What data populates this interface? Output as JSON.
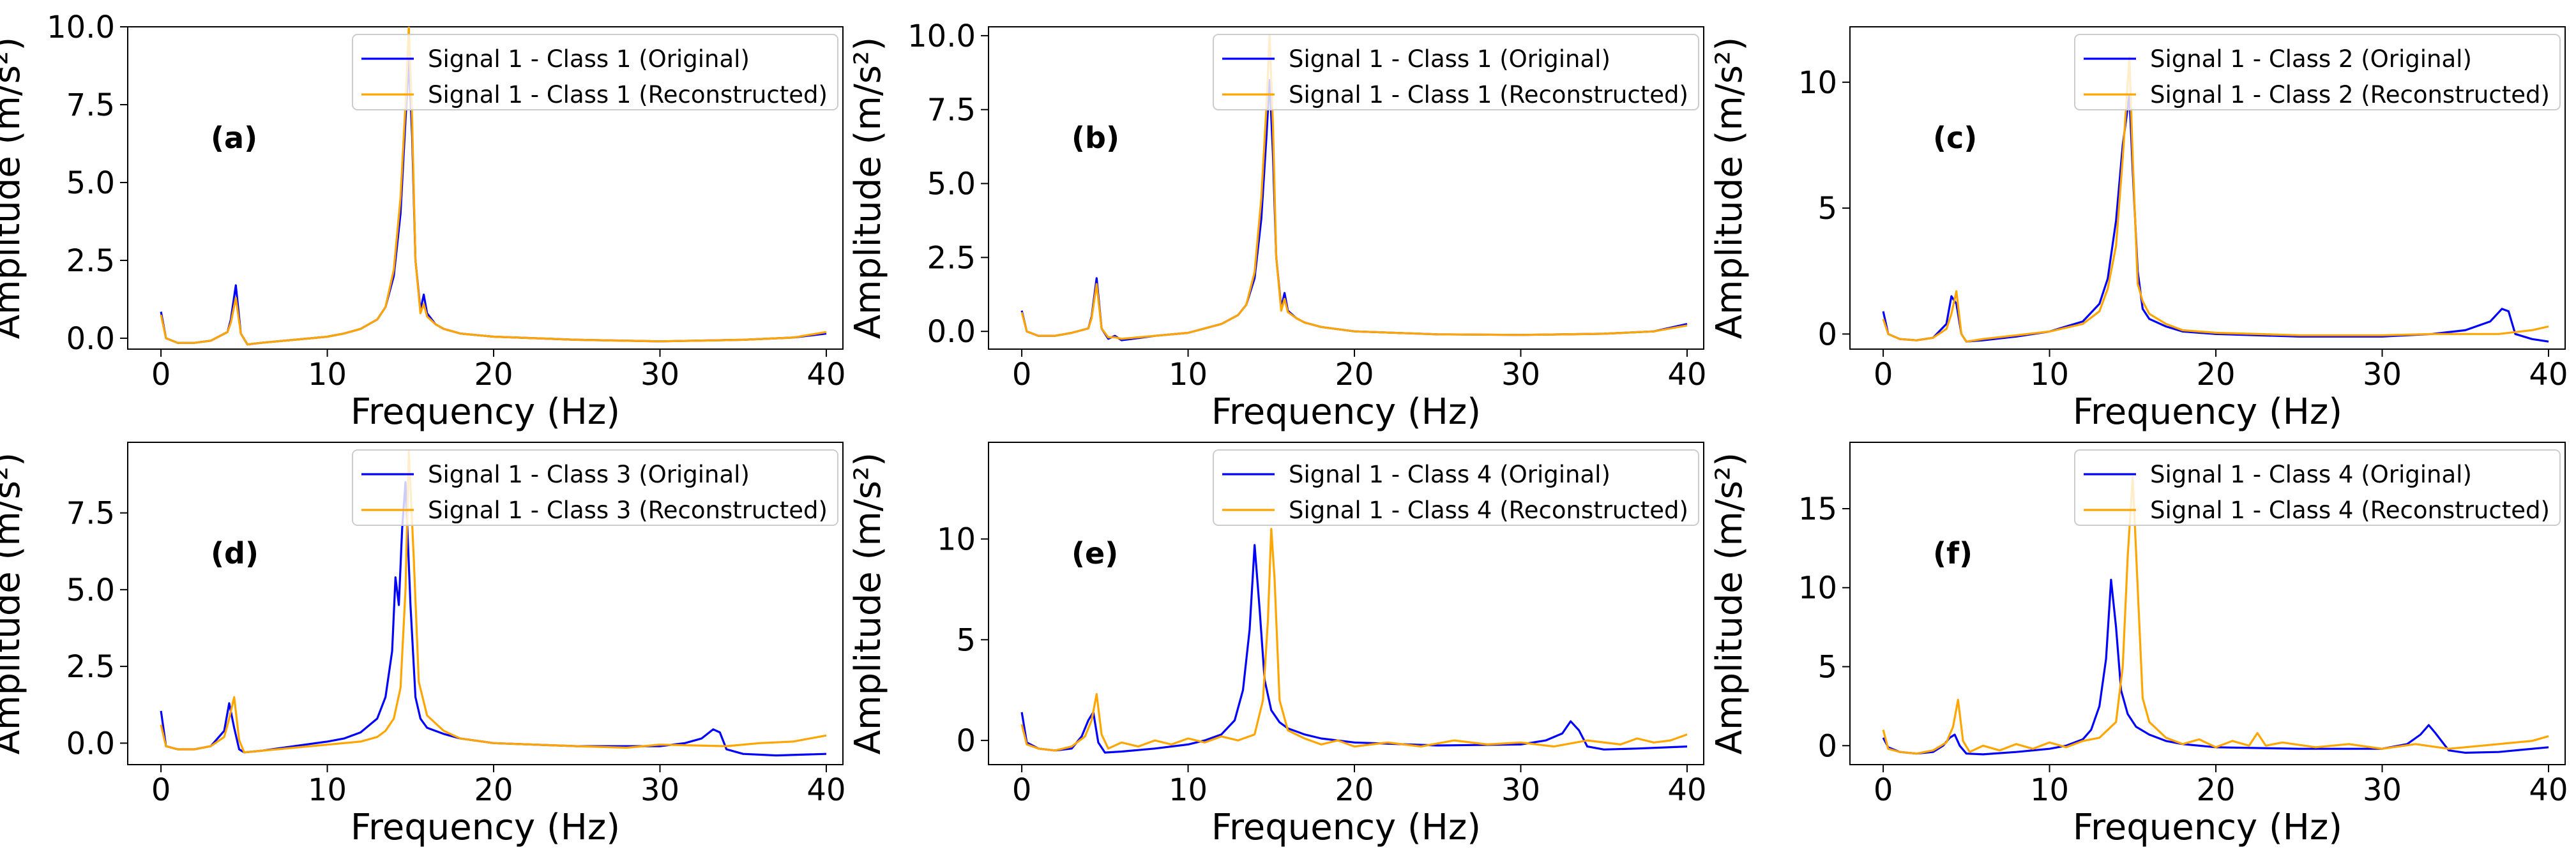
{
  "chart_data": [
    {
      "type": "line",
      "panel_label": "(a)",
      "xlabel": "Frequency (Hz)",
      "ylabel": "Amplitude (m/s²)",
      "xlim": [
        -2,
        41
      ],
      "ylim": [
        -0.35,
        10
      ],
      "xticks": [
        "0",
        "10",
        "20",
        "30",
        "40"
      ],
      "yticks": [
        "0.0",
        "2.5",
        "5.0",
        "7.5",
        "10.0"
      ],
      "legend_position": "top-right",
      "series": [
        {
          "name": "Signal 1 - Class 1 (Original)",
          "color": "#0000ff",
          "x": [
            0,
            0.3,
            1,
            2,
            3,
            4,
            4.2,
            4.5,
            4.8,
            5.2,
            6,
            8,
            10,
            11,
            12,
            13,
            13.5,
            14,
            14.4,
            14.7,
            14.9,
            15.1,
            15.3,
            15.6,
            15.8,
            16,
            16.5,
            17,
            18,
            20,
            25,
            30,
            35,
            38,
            40
          ],
          "y": [
            0.85,
            0,
            -0.15,
            -0.15,
            -0.08,
            0.2,
            0.6,
            1.7,
            0.15,
            -0.2,
            -0.15,
            -0.05,
            0.05,
            0.15,
            0.3,
            0.6,
            1.0,
            2.0,
            4.0,
            7.0,
            8.9,
            6.5,
            2.5,
            0.9,
            1.4,
            0.8,
            0.45,
            0.3,
            0.15,
            0.05,
            -0.05,
            -0.1,
            -0.05,
            0.02,
            0.15
          ]
        },
        {
          "name": "Signal 1 - Class 1 (Reconstructed)",
          "color": "#ffa500",
          "x": [
            0,
            0.3,
            1,
            2,
            3,
            4,
            4.2,
            4.5,
            4.8,
            5.2,
            6,
            8,
            10,
            11,
            12,
            13,
            13.5,
            14,
            14.4,
            14.7,
            14.9,
            15.1,
            15.3,
            15.6,
            15.8,
            16,
            16.5,
            17,
            18,
            20,
            25,
            30,
            35,
            38,
            40
          ],
          "y": [
            0.75,
            0,
            -0.15,
            -0.15,
            -0.08,
            0.2,
            0.5,
            1.3,
            0.15,
            -0.2,
            -0.15,
            -0.05,
            0.05,
            0.15,
            0.3,
            0.6,
            1.0,
            2.2,
            4.5,
            7.5,
            10.0,
            7.0,
            2.5,
            0.8,
            1.1,
            0.7,
            0.45,
            0.3,
            0.15,
            0.05,
            -0.05,
            -0.1,
            -0.05,
            0.02,
            0.2
          ]
        }
      ]
    },
    {
      "type": "line",
      "panel_label": "(b)",
      "xlabel": "Frequency (Hz)",
      "ylabel": "Amplitude (m/s²)",
      "xlim": [
        -2,
        41
      ],
      "ylim": [
        -0.6,
        10.3
      ],
      "xticks": [
        "0",
        "10",
        "20",
        "30",
        "40"
      ],
      "yticks": [
        "0.0",
        "2.5",
        "5.0",
        "7.5",
        "10.0"
      ],
      "legend_position": "top-right",
      "series": [
        {
          "name": "Signal 1 - Class 1 (Original)",
          "color": "#0000ff",
          "x": [
            0,
            0.3,
            1,
            2,
            3,
            4,
            4.2,
            4.5,
            4.8,
            5.2,
            5.6,
            6,
            8,
            10,
            11,
            12,
            13,
            13.5,
            14,
            14.4,
            14.7,
            14.9,
            15.1,
            15.3,
            15.6,
            15.8,
            16,
            16.5,
            17,
            18,
            20,
            25,
            30,
            35,
            38,
            40
          ],
          "y": [
            0.7,
            0,
            -0.15,
            -0.15,
            -0.05,
            0.1,
            0.5,
            1.8,
            0.1,
            -0.25,
            -0.15,
            -0.3,
            -0.15,
            -0.05,
            0.1,
            0.25,
            0.55,
            0.9,
            1.8,
            3.8,
            6.5,
            8.5,
            6.0,
            2.5,
            0.8,
            1.3,
            0.7,
            0.45,
            0.3,
            0.15,
            0.0,
            -0.1,
            -0.12,
            -0.08,
            0.0,
            0.25
          ]
        },
        {
          "name": "Signal 1 - Class 1 (Reconstructed)",
          "color": "#ffa500",
          "x": [
            0,
            0.3,
            1,
            2,
            3,
            4,
            4.2,
            4.5,
            4.8,
            5.2,
            5.6,
            6,
            8,
            10,
            11,
            12,
            13,
            13.5,
            14,
            14.4,
            14.7,
            14.9,
            15.1,
            15.3,
            15.6,
            15.8,
            16,
            16.5,
            17,
            18,
            20,
            25,
            30,
            35,
            38,
            40
          ],
          "y": [
            0.65,
            0,
            -0.15,
            -0.15,
            -0.05,
            0.1,
            0.45,
            1.6,
            0.1,
            -0.2,
            -0.2,
            -0.25,
            -0.15,
            -0.05,
            0.1,
            0.25,
            0.55,
            0.9,
            2.0,
            4.5,
            7.5,
            10.0,
            7.0,
            2.5,
            0.7,
            1.1,
            0.65,
            0.45,
            0.3,
            0.15,
            0.0,
            -0.1,
            -0.12,
            -0.08,
            0.0,
            0.2
          ]
        }
      ]
    },
    {
      "type": "line",
      "panel_label": "(c)",
      "xlabel": "Frequency (Hz)",
      "ylabel": "Amplitude (m/s²)",
      "xlim": [
        -2,
        41
      ],
      "ylim": [
        -0.6,
        12.2
      ],
      "xticks": [
        "0",
        "10",
        "20",
        "30",
        "40"
      ],
      "yticks": [
        "0",
        "5",
        "10"
      ],
      "legend_position": "top-right",
      "series": [
        {
          "name": "Signal 1 - Class 2 (Original)",
          "color": "#0000ff",
          "x": [
            0,
            0.3,
            1,
            2,
            3,
            3.8,
            4.1,
            4.4,
            4.7,
            5,
            6,
            8,
            10,
            12,
            13,
            13.5,
            14,
            14.4,
            14.8,
            15,
            15.3,
            15.6,
            16,
            17,
            18,
            20,
            25,
            30,
            33,
            35,
            36.5,
            37.2,
            37.6,
            38,
            39,
            40
          ],
          "y": [
            0.9,
            0,
            -0.2,
            -0.25,
            -0.15,
            0.4,
            1.5,
            1.2,
            0.0,
            -0.3,
            -0.25,
            -0.1,
            0.1,
            0.5,
            1.2,
            2.2,
            4.5,
            7.5,
            9.5,
            6.5,
            2.5,
            1.0,
            0.6,
            0.3,
            0.1,
            0.0,
            -0.1,
            -0.1,
            0.0,
            0.15,
            0.5,
            1.0,
            0.9,
            0.0,
            -0.2,
            -0.3
          ]
        },
        {
          "name": "Signal 1 - Class 2 (Reconstructed)",
          "color": "#ffa500",
          "x": [
            0,
            0.3,
            1,
            2,
            3,
            3.8,
            4.1,
            4.4,
            4.7,
            5,
            6,
            8,
            10,
            12,
            13,
            13.5,
            14,
            14.4,
            14.8,
            15,
            15.3,
            15.6,
            16,
            17,
            18,
            20,
            25,
            30,
            33,
            35,
            37,
            39,
            40
          ],
          "y": [
            0.6,
            0,
            -0.2,
            -0.25,
            -0.15,
            0.2,
            0.8,
            1.7,
            0.0,
            -0.3,
            -0.2,
            -0.05,
            0.1,
            0.4,
            0.9,
            1.8,
            3.5,
            7.0,
            11.0,
            7.0,
            2.0,
            1.3,
            0.8,
            0.4,
            0.15,
            0.05,
            -0.05,
            -0.05,
            0.0,
            0.0,
            0.0,
            0.15,
            0.3
          ]
        }
      ]
    },
    {
      "type": "line",
      "panel_label": "(d)",
      "xlabel": "Frequency (Hz)",
      "ylabel": "Amplitude (m/s²)",
      "xlim": [
        -2,
        41
      ],
      "ylim": [
        -0.7,
        9.8
      ],
      "xticks": [
        "0",
        "10",
        "20",
        "30",
        "40"
      ],
      "yticks": [
        "0.0",
        "2.5",
        "5.0",
        "7.5"
      ],
      "legend_position": "top-right",
      "series": [
        {
          "name": "Signal 1 - Class 3 (Original)",
          "color": "#0000ff",
          "x": [
            0,
            0.3,
            1,
            2,
            3,
            3.8,
            4.1,
            4.4,
            4.7,
            5,
            6,
            8,
            10,
            11,
            12,
            13,
            13.5,
            13.9,
            14.1,
            14.3,
            14.5,
            14.7,
            15,
            15.3,
            15.6,
            16,
            17,
            18,
            20,
            25,
            30,
            31.5,
            32.5,
            33.2,
            33.6,
            34,
            35,
            37,
            40
          ],
          "y": [
            1.05,
            -0.1,
            -0.2,
            -0.2,
            -0.1,
            0.4,
            1.3,
            0.5,
            -0.2,
            -0.3,
            -0.25,
            -0.1,
            0.05,
            0.15,
            0.35,
            0.8,
            1.5,
            3.0,
            5.4,
            4.5,
            7.0,
            8.5,
            4.5,
            1.5,
            0.8,
            0.5,
            0.3,
            0.15,
            0.0,
            -0.1,
            -0.1,
            0.0,
            0.15,
            0.45,
            0.35,
            -0.2,
            -0.35,
            -0.4,
            -0.35
          ]
        },
        {
          "name": "Signal 1 - Class 3 (Reconstructed)",
          "color": "#ffa500",
          "x": [
            0,
            0.3,
            1,
            2,
            3,
            3.8,
            4.1,
            4.4,
            4.7,
            5,
            6,
            8,
            10,
            12,
            13,
            13.5,
            14,
            14.4,
            14.7,
            14.9,
            15.2,
            15.5,
            16,
            17,
            18,
            20,
            25,
            28,
            30,
            34,
            36,
            38,
            40
          ],
          "y": [
            0.6,
            -0.1,
            -0.2,
            -0.2,
            -0.1,
            0.2,
            0.8,
            1.5,
            0.1,
            -0.3,
            -0.25,
            -0.15,
            -0.05,
            0.05,
            0.2,
            0.4,
            0.8,
            1.8,
            5.0,
            9.5,
            6.0,
            2.0,
            0.9,
            0.4,
            0.15,
            0.0,
            -0.1,
            -0.15,
            -0.05,
            -0.1,
            0.0,
            0.05,
            0.25
          ]
        }
      ]
    },
    {
      "type": "line",
      "panel_label": "(e)",
      "xlabel": "Frequency (Hz)",
      "ylabel": "Amplitude (m/s²)",
      "xlim": [
        -2,
        41
      ],
      "ylim": [
        -1.2,
        14.8
      ],
      "xticks": [
        "0",
        "10",
        "20",
        "30",
        "40"
      ],
      "yticks": [
        "0",
        "5",
        "10"
      ],
      "legend_position": "top-right",
      "series": [
        {
          "name": "Signal 1 - Class 4 (Original)",
          "color": "#0000ff",
          "x": [
            0,
            0.3,
            1,
            2,
            3,
            3.6,
            4,
            4.3,
            4.6,
            5,
            6,
            8,
            10,
            11,
            12,
            12.8,
            13.3,
            13.7,
            14,
            14.3,
            14.6,
            15,
            15.5,
            16,
            17,
            18,
            20,
            25,
            30,
            31.5,
            32.5,
            33,
            33.5,
            34,
            35,
            37,
            40
          ],
          "y": [
            1.4,
            -0.1,
            -0.4,
            -0.5,
            -0.4,
            0.2,
            1.0,
            1.4,
            -0.1,
            -0.6,
            -0.55,
            -0.4,
            -0.2,
            0.0,
            0.3,
            1.0,
            2.5,
            5.5,
            9.7,
            6.5,
            3.0,
            1.5,
            0.9,
            0.6,
            0.3,
            0.1,
            -0.1,
            -0.25,
            -0.2,
            0.0,
            0.35,
            0.95,
            0.5,
            -0.3,
            -0.45,
            -0.4,
            -0.3
          ]
        },
        {
          "name": "Signal 1 - Class 4 (Reconstructed)",
          "color": "#ffa500",
          "x": [
            0,
            0.3,
            1,
            2,
            3,
            3.8,
            4.2,
            4.5,
            4.8,
            5.2,
            6,
            7,
            8,
            9,
            10,
            11,
            12,
            13,
            14,
            14.5,
            14.8,
            15,
            15.2,
            15.5,
            16,
            17,
            18,
            19,
            20,
            22,
            24,
            26,
            28,
            30,
            32,
            34,
            36,
            37,
            38,
            39,
            40
          ],
          "y": [
            0.8,
            -0.2,
            -0.4,
            -0.5,
            -0.3,
            0.2,
            1.0,
            2.3,
            0.3,
            -0.4,
            -0.1,
            -0.3,
            0.0,
            -0.2,
            0.1,
            -0.1,
            0.2,
            0.0,
            0.3,
            2.0,
            6.0,
            10.5,
            8.0,
            2.0,
            0.5,
            0.1,
            -0.2,
            0.0,
            -0.3,
            -0.1,
            -0.3,
            0.0,
            -0.2,
            -0.1,
            -0.3,
            0.0,
            -0.2,
            0.1,
            -0.1,
            0.0,
            0.3
          ]
        }
      ]
    },
    {
      "type": "line",
      "panel_label": "(f)",
      "xlabel": "Frequency (Hz)",
      "ylabel": "Amplitude (m/s²)",
      "xlim": [
        -2,
        41
      ],
      "ylim": [
        -1.2,
        19.2
      ],
      "xticks": [
        "0",
        "10",
        "20",
        "30",
        "40"
      ],
      "yticks": [
        "0",
        "5",
        "10",
        "15"
      ],
      "legend_position": "top-right",
      "series": [
        {
          "name": "Signal 1 - Class 4 (Original)",
          "color": "#0000ff",
          "x": [
            0,
            0.3,
            1,
            2,
            3,
            3.6,
            4,
            4.3,
            4.6,
            5,
            6,
            8,
            10,
            11,
            12,
            12.5,
            13,
            13.4,
            13.7,
            14,
            14.3,
            14.7,
            15.2,
            16,
            17,
            18,
            20,
            25,
            30,
            31.5,
            32.3,
            32.8,
            33.2,
            34,
            35,
            37,
            40
          ],
          "y": [
            0.5,
            -0.1,
            -0.4,
            -0.5,
            -0.4,
            0.0,
            0.5,
            0.7,
            0.0,
            -0.5,
            -0.55,
            -0.4,
            -0.2,
            0.0,
            0.4,
            1.0,
            2.5,
            5.5,
            10.5,
            7.5,
            3.5,
            2.0,
            1.2,
            0.7,
            0.3,
            0.1,
            -0.1,
            -0.2,
            -0.2,
            0.1,
            0.7,
            1.3,
            0.8,
            -0.3,
            -0.45,
            -0.4,
            -0.1
          ]
        },
        {
          "name": "Signal 1 - Class 4 (Reconstructed)",
          "color": "#ffa500",
          "x": [
            0,
            0.3,
            1,
            2,
            3,
            3.8,
            4.2,
            4.5,
            4.8,
            5.2,
            6,
            7,
            8,
            9,
            10,
            11,
            12,
            13,
            14,
            14.4,
            14.7,
            15,
            15.3,
            15.6,
            16,
            16.5,
            17,
            18,
            19,
            20,
            21,
            22,
            22.5,
            23,
            24,
            26,
            28,
            30,
            32,
            34,
            36,
            38,
            39,
            40
          ],
          "y": [
            1.0,
            -0.2,
            -0.4,
            -0.5,
            -0.3,
            0.2,
            1.2,
            2.9,
            0.3,
            -0.4,
            0.0,
            -0.3,
            0.1,
            -0.2,
            0.2,
            -0.1,
            0.3,
            0.5,
            1.5,
            5.0,
            12.0,
            17.0,
            10.0,
            3.0,
            1.5,
            1.0,
            0.5,
            0.1,
            0.4,
            -0.1,
            0.3,
            0.0,
            0.8,
            0.0,
            0.2,
            -0.1,
            0.1,
            -0.2,
            0.1,
            -0.2,
            0.0,
            0.2,
            0.3,
            0.6
          ]
        }
      ]
    }
  ]
}
